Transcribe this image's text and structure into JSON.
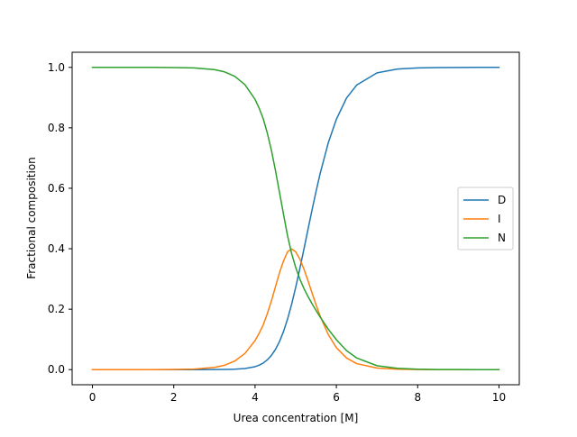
{
  "chart_data": {
    "type": "line",
    "title": "",
    "xlabel": "Urea concentration [M]",
    "ylabel": "Fractional composition",
    "xlim": [
      -0.5,
      10.5
    ],
    "ylim": [
      -0.05,
      1.05
    ],
    "xticks": [
      0,
      2,
      4,
      6,
      8,
      10
    ],
    "yticks": [
      0.0,
      0.2,
      0.4,
      0.6,
      0.8,
      1.0
    ],
    "xtick_labels": [
      "0",
      "2",
      "4",
      "6",
      "8",
      "10"
    ],
    "ytick_labels": [
      "0.0",
      "0.2",
      "0.4",
      "0.6",
      "0.8",
      "1.0"
    ],
    "grid": false,
    "legend_position": "center-right",
    "x": [
      0,
      0.5,
      1,
      1.5,
      2,
      2.5,
      3,
      3.25,
      3.5,
      3.75,
      4,
      4.1,
      4.2,
      4.3,
      4.4,
      4.5,
      4.6,
      4.7,
      4.8,
      4.9,
      5,
      5.1,
      5.2,
      5.3,
      5.4,
      5.5,
      5.6,
      5.8,
      6,
      6.25,
      6.5,
      7,
      7.5,
      8,
      8.5,
      9,
      9.5,
      10
    ],
    "series": [
      {
        "name": "D",
        "color": "#1f77b4",
        "values": [
          0,
          0,
          0,
          0,
          0,
          0,
          0.0002,
          0.0005,
          0.0013,
          0.0037,
          0.0097,
          0.0146,
          0.0217,
          0.0321,
          0.0467,
          0.0665,
          0.0926,
          0.1261,
          0.1675,
          0.2166,
          0.2724,
          0.3333,
          0.3974,
          0.4626,
          0.5272,
          0.5894,
          0.6481,
          0.7499,
          0.8282,
          0.8985,
          0.9415,
          0.9818,
          0.9944,
          0.9983,
          0.9995,
          0.9998,
          1.0,
          1.0
        ]
      },
      {
        "name": "I",
        "color": "#ff7f0e",
        "values": [
          0,
          0,
          0,
          0.0001,
          0.0005,
          0.0018,
          0.0073,
          0.0144,
          0.0283,
          0.0534,
          0.0961,
          0.1202,
          0.1478,
          0.1847,
          0.2264,
          0.2732,
          0.3202,
          0.3598,
          0.3901,
          0.3994,
          0.3897,
          0.3664,
          0.3335,
          0.295,
          0.2545,
          0.2147,
          0.1778,
          0.1162,
          0.0728,
          0.0385,
          0.0199,
          0.0052,
          0.0013,
          0.0003,
          0.0001,
          0,
          0,
          0
        ]
      },
      {
        "name": "N",
        "color": "#2ca02c",
        "values": [
          1.0,
          1.0,
          1.0,
          0.9999,
          0.9995,
          0.9982,
          0.9925,
          0.9851,
          0.9704,
          0.9429,
          0.8942,
          0.8652,
          0.8305,
          0.7832,
          0.7269,
          0.6603,
          0.5872,
          0.5141,
          0.4424,
          0.384,
          0.3379,
          0.3003,
          0.2691,
          0.2424,
          0.2183,
          0.1959,
          0.1741,
          0.1339,
          0.099,
          0.063,
          0.0386,
          0.013,
          0.0043,
          0.0014,
          0.0004,
          0.0002,
          0,
          0
        ]
      }
    ]
  }
}
